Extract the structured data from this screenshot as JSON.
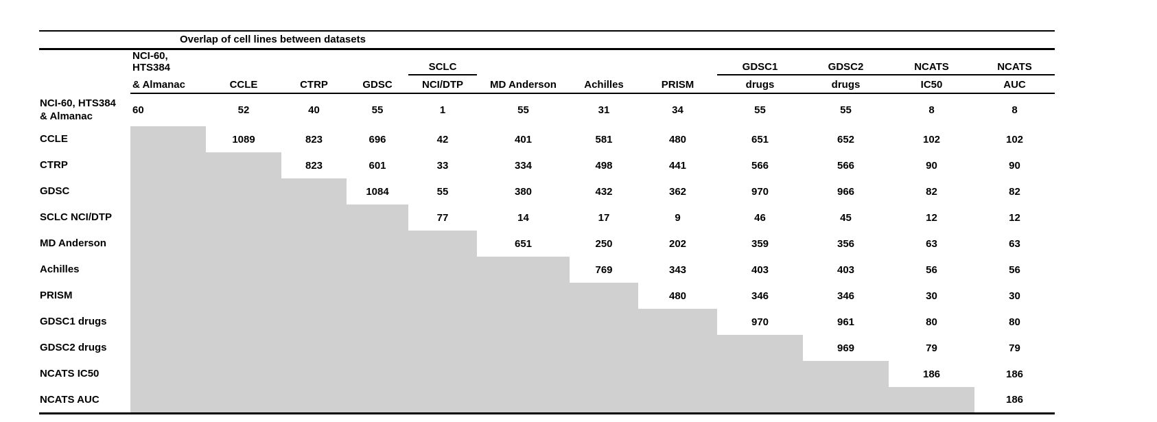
{
  "table": {
    "title": "Overlap of cell lines between datasets",
    "colors": {
      "shaded_cell": "#d0d0d0",
      "text": "#000000",
      "background": "#ffffff",
      "rule": "#000000"
    },
    "columns": [
      {
        "group": "NCI-60, HTS384",
        "label": "& Almanac",
        "group_underline": false
      },
      {
        "group": "",
        "label": "CCLE",
        "group_underline": false
      },
      {
        "group": "",
        "label": "CTRP",
        "group_underline": false
      },
      {
        "group": "",
        "label": "GDSC",
        "group_underline": false
      },
      {
        "group": "SCLC",
        "label": "NCI/DTP",
        "group_underline": true
      },
      {
        "group": "",
        "label": "MD Anderson",
        "group_underline": false
      },
      {
        "group": "",
        "label": "Achilles",
        "group_underline": false
      },
      {
        "group": "",
        "label": "PRISM",
        "group_underline": false
      },
      {
        "group": "GDSC1",
        "label": "drugs",
        "group_underline": true
      },
      {
        "group": "GDSC2",
        "label": "drugs",
        "group_underline": true
      },
      {
        "group": "NCATS",
        "label": "IC50",
        "group_underline": true
      },
      {
        "group": "NCATS",
        "label": "AUC",
        "group_underline": true
      }
    ],
    "rows": [
      {
        "label": "NCI-60, HTS384\n& Almanac",
        "values": [
          60,
          52,
          40,
          55,
          1,
          55,
          31,
          34,
          55,
          55,
          8,
          8
        ]
      },
      {
        "label": "CCLE",
        "values": [
          null,
          1089,
          823,
          696,
          42,
          401,
          581,
          480,
          651,
          652,
          102,
          102
        ]
      },
      {
        "label": "CTRP",
        "values": [
          null,
          null,
          823,
          601,
          33,
          334,
          498,
          441,
          566,
          566,
          90,
          90
        ]
      },
      {
        "label": "GDSC",
        "values": [
          null,
          null,
          null,
          1084,
          55,
          380,
          432,
          362,
          970,
          966,
          82,
          82
        ]
      },
      {
        "label": "SCLC NCI/DTP",
        "values": [
          null,
          null,
          null,
          null,
          77,
          14,
          17,
          9,
          46,
          45,
          12,
          12
        ]
      },
      {
        "label": "MD Anderson",
        "values": [
          null,
          null,
          null,
          null,
          null,
          651,
          250,
          202,
          359,
          356,
          63,
          63
        ]
      },
      {
        "label": "Achilles",
        "values": [
          null,
          null,
          null,
          null,
          null,
          null,
          769,
          343,
          403,
          403,
          56,
          56
        ]
      },
      {
        "label": "PRISM",
        "values": [
          null,
          null,
          null,
          null,
          null,
          null,
          null,
          480,
          346,
          346,
          30,
          30
        ]
      },
      {
        "label": "GDSC1 drugs",
        "values": [
          null,
          null,
          null,
          null,
          null,
          null,
          null,
          null,
          970,
          961,
          80,
          80
        ]
      },
      {
        "label": "GDSC2 drugs",
        "values": [
          null,
          null,
          null,
          null,
          null,
          null,
          null,
          null,
          null,
          969,
          79,
          79
        ]
      },
      {
        "label": "NCATS IC50",
        "values": [
          null,
          null,
          null,
          null,
          null,
          null,
          null,
          null,
          null,
          null,
          186,
          186
        ]
      },
      {
        "label": "NCATS AUC",
        "values": [
          null,
          null,
          null,
          null,
          null,
          null,
          null,
          null,
          null,
          null,
          null,
          186
        ]
      }
    ]
  }
}
